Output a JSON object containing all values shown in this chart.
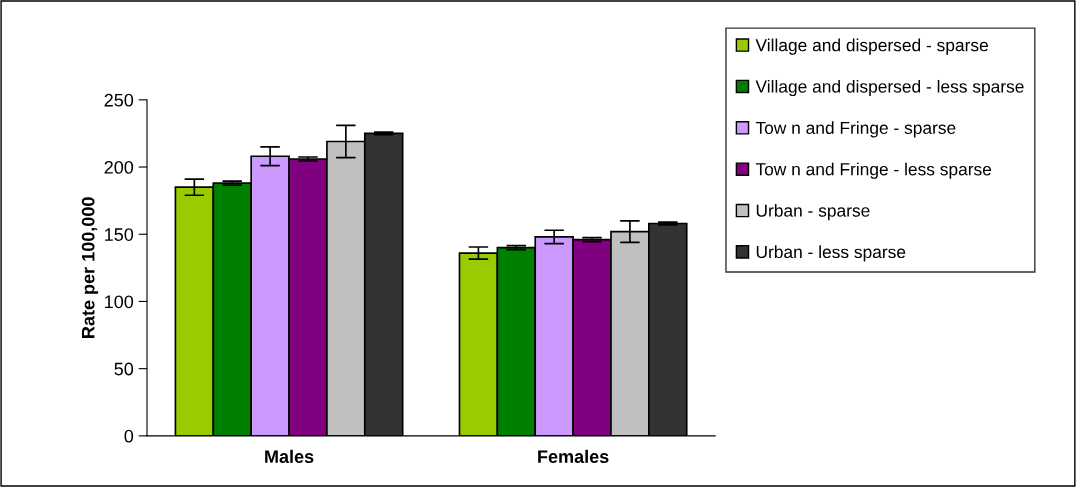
{
  "chart_data": {
    "type": "bar",
    "ylabel": "Rate per 100,000",
    "categories": [
      "Males",
      "Females"
    ],
    "series": [
      {
        "name": "Village and dispersed - sparse",
        "color": "#99cc00",
        "values": [
          185,
          136
        ],
        "errors": [
          6,
          4.5
        ]
      },
      {
        "name": "Village and dispersed - less sparse",
        "color": "#008000",
        "values": [
          188,
          140
        ],
        "errors": [
          1.5,
          1.5
        ]
      },
      {
        "name": "Tow n and Fringe - sparse",
        "color": "#cc99ff",
        "values": [
          208,
          148
        ],
        "errors": [
          7,
          5
        ]
      },
      {
        "name": "Tow n and Fringe - less sparse",
        "color": "#800080",
        "values": [
          206,
          146
        ],
        "errors": [
          1.5,
          1.5
        ]
      },
      {
        "name": "Urban - sparse",
        "color": "#c0c0c0",
        "values": [
          219,
          152
        ],
        "errors": [
          12,
          8
        ]
      },
      {
        "name": "Urban - less sparse",
        "color": "#333333",
        "values": [
          225,
          158
        ],
        "errors": [
          1,
          1
        ]
      }
    ],
    "ylim": [
      0,
      250
    ],
    "yticks": [
      0,
      50,
      100,
      150,
      200,
      250
    ],
    "grid": false,
    "legend": "right"
  }
}
